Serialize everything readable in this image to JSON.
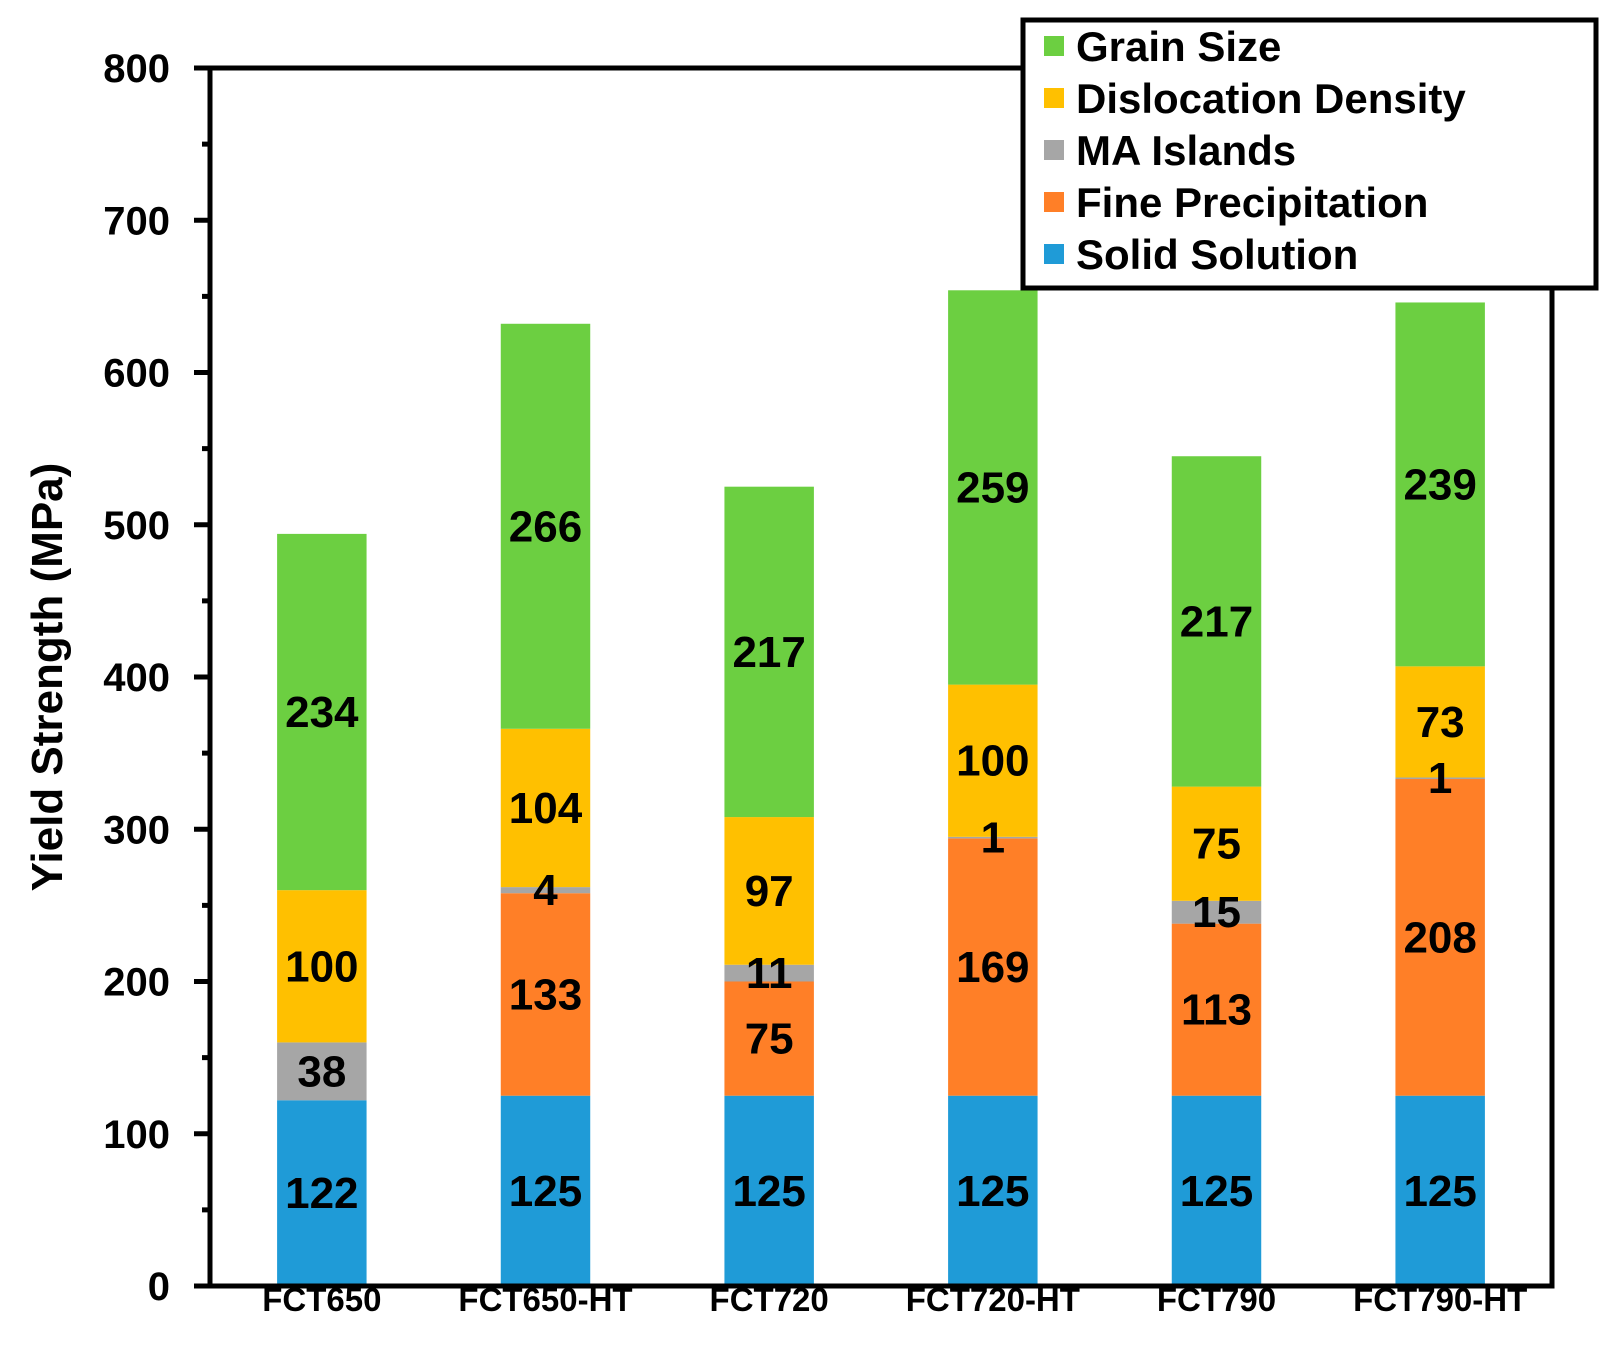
{
  "chart_data": {
    "type": "bar",
    "stacked": true,
    "title": "",
    "xlabel": "",
    "ylabel": "Yield Strength (MPa)",
    "ylim": [
      0,
      800
    ],
    "yticks": [
      0,
      100,
      200,
      300,
      400,
      500,
      600,
      700,
      800
    ],
    "categories": [
      "FCT650",
      "FCT650-HT",
      "FCT720",
      "FCT720-HT",
      "FCT790",
      "FCT790-HT"
    ],
    "series": [
      {
        "name": "Solid Solution",
        "color": "#1f9bd7",
        "values": [
          122,
          125,
          125,
          125,
          125,
          125
        ]
      },
      {
        "name": "Fine Precipitation",
        "color": "#ff7f27",
        "values": [
          0,
          133,
          75,
          169,
          113,
          208
        ]
      },
      {
        "name": "MA Islands",
        "color": "#a6a6a6",
        "values": [
          38,
          4,
          11,
          1,
          15,
          1
        ]
      },
      {
        "name": "Dislocation Density",
        "color": "#ffc000",
        "values": [
          100,
          104,
          97,
          100,
          75,
          73
        ]
      },
      {
        "name": "Grain Size",
        "color": "#6ccf41",
        "values": [
          234,
          266,
          217,
          259,
          217,
          239
        ]
      }
    ],
    "legend_order": [
      "Grain Size",
      "Dislocation Density",
      "MA Islands",
      "Fine Precipitation",
      "Solid Solution"
    ],
    "legend_position": "top-right",
    "grid": false
  }
}
